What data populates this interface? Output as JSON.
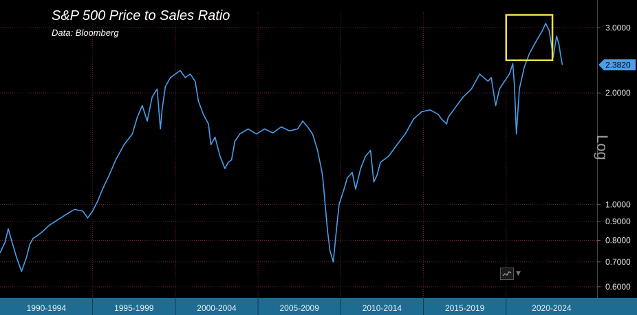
{
  "chart_data": {
    "type": "line",
    "title": "S&P 500 Price to Sales Ratio",
    "subtitle": "Data: Bloomberg",
    "yscale": "log",
    "scale_label": "Log",
    "ylim": [
      0.56,
      3.3
    ],
    "xlim": [
      1989.0,
      2025.1
    ],
    "y_ticks": [
      {
        "value": 3.0,
        "label": "3.0000"
      },
      {
        "value": 2.0,
        "label": "2.0000"
      },
      {
        "value": 1.0,
        "label": "1.0000"
      },
      {
        "value": 0.9,
        "label": "0.9000"
      },
      {
        "value": 0.8,
        "label": "0.8000"
      },
      {
        "value": 0.7,
        "label": "0.7000"
      },
      {
        "value": 0.6,
        "label": "0.6000"
      }
    ],
    "x_bands": [
      {
        "label": "1990-1994",
        "start": 1989.0,
        "end": 1994.6
      },
      {
        "label": "1995-1999",
        "start": 1994.6,
        "end": 1999.6
      },
      {
        "label": "2000-2004",
        "start": 1999.6,
        "end": 2004.6
      },
      {
        "label": "2005-2009",
        "start": 2004.6,
        "end": 2009.6
      },
      {
        "label": "2010-2014",
        "start": 2009.6,
        "end": 2014.6
      },
      {
        "label": "2015-2019",
        "start": 2014.6,
        "end": 2019.6
      },
      {
        "label": "2020-2024",
        "start": 2019.6,
        "end": 2025.1
      }
    ],
    "last_value": {
      "value": 2.382,
      "label": "2.3820"
    },
    "highlight": {
      "x_start": 2019.6,
      "x_end": 2022.4,
      "y_low": 2.45,
      "y_high": 3.25
    },
    "grid": true,
    "colors": {
      "line": "#4a9eea",
      "band": "#1f6c93",
      "gridline": "#6b1f43",
      "highlight": "#f0e040"
    },
    "series": [
      {
        "x": [
          1989.0,
          1989.3,
          1989.5,
          1989.7,
          1990.0,
          1990.3,
          1990.6,
          1990.8,
          1991.0,
          1991.2,
          1991.5,
          1992.0,
          1992.5,
          1993.0,
          1993.5,
          1994.0,
          1994.3,
          1994.6,
          1994.9,
          1995.2,
          1995.6,
          1996.0,
          1996.5,
          1997.0,
          1997.3,
          1997.6,
          1997.9,
          1998.2,
          1998.5,
          1998.7,
          1998.8,
          1999.0,
          1999.3,
          1999.6,
          1999.9,
          2000.2,
          2000.5,
          2000.8,
          2001.0,
          2001.3,
          2001.6,
          2001.75,
          2002.0,
          2002.3,
          2002.6,
          2002.8,
          2003.0,
          2003.2,
          2003.5,
          2004.0,
          2004.5,
          2005.0,
          2005.5,
          2006.0,
          2006.5,
          2007.0,
          2007.3,
          2007.6,
          2007.9,
          2008.2,
          2008.5,
          2008.8,
          2008.95,
          2009.15,
          2009.3,
          2009.5,
          2009.8,
          2010.0,
          2010.3,
          2010.5,
          2010.8,
          2011.1,
          2011.4,
          2011.6,
          2011.8,
          2012.0,
          2012.5,
          2013.0,
          2013.5,
          2014.0,
          2014.5,
          2015.0,
          2015.5,
          2015.7,
          2016.0,
          2016.1,
          2016.5,
          2017.0,
          2017.5,
          2018.0,
          2018.5,
          2018.7,
          2018.97,
          2019.2,
          2019.5,
          2019.8,
          2020.0,
          2020.1,
          2020.22,
          2020.4,
          2020.7,
          2021.0,
          2021.3,
          2021.6,
          2021.8,
          2021.99,
          2022.2,
          2022.45,
          2022.65,
          2022.8,
          2022.88,
          2022.95,
          2023.0
        ],
        "values": [
          0.74,
          0.79,
          0.86,
          0.8,
          0.72,
          0.66,
          0.72,
          0.78,
          0.81,
          0.82,
          0.84,
          0.88,
          0.91,
          0.94,
          0.97,
          0.96,
          0.92,
          0.96,
          1.02,
          1.1,
          1.2,
          1.32,
          1.45,
          1.55,
          1.72,
          1.85,
          1.68,
          1.95,
          2.05,
          1.6,
          1.8,
          2.08,
          2.2,
          2.25,
          2.3,
          2.2,
          2.25,
          2.15,
          1.9,
          1.75,
          1.65,
          1.45,
          1.52,
          1.35,
          1.25,
          1.3,
          1.32,
          1.48,
          1.55,
          1.6,
          1.55,
          1.6,
          1.56,
          1.62,
          1.58,
          1.6,
          1.68,
          1.62,
          1.55,
          1.4,
          1.2,
          0.85,
          0.75,
          0.7,
          0.82,
          1.0,
          1.1,
          1.18,
          1.22,
          1.1,
          1.25,
          1.35,
          1.4,
          1.15,
          1.2,
          1.3,
          1.35,
          1.45,
          1.55,
          1.7,
          1.78,
          1.8,
          1.75,
          1.7,
          1.65,
          1.72,
          1.82,
          1.95,
          2.05,
          2.25,
          2.15,
          2.2,
          1.85,
          2.05,
          2.15,
          2.25,
          2.4,
          2.1,
          1.55,
          2.05,
          2.35,
          2.55,
          2.7,
          2.85,
          2.95,
          3.08,
          2.95,
          2.5,
          2.85,
          2.7,
          2.55,
          2.45,
          2.382
        ]
      }
    ]
  }
}
